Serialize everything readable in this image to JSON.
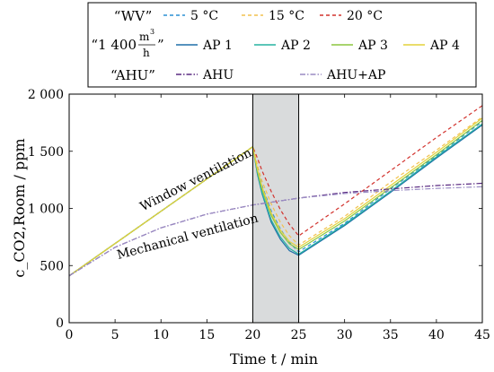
{
  "legend": {
    "row_labels": [
      "“WV”",
      "“1 400",
      "”",
      "“AHU”"
    ],
    "unit": {
      "num": "m",
      "sup": "3",
      "den": "h"
    },
    "items": [
      {
        "label": "5 °C",
        "color": "#2a8fd4",
        "dash": "4,3"
      },
      {
        "label": "15 °C",
        "color": "#f2c14e",
        "dash": "4,3"
      },
      {
        "label": "20 °C",
        "color": "#d2322d",
        "dash": "4,3"
      },
      {
        "label": "AP 1",
        "color": "#1f6fa8",
        "dash": ""
      },
      {
        "label": "AP 2",
        "color": "#26b3a1",
        "dash": ""
      },
      {
        "label": "AP 3",
        "color": "#8cc63f",
        "dash": ""
      },
      {
        "label": "AP 4",
        "color": "#e3d23a",
        "dash": ""
      },
      {
        "label": "AHU",
        "color": "#5a2a82",
        "dash": "6,2,1.5,2"
      },
      {
        "label": "AHU+AP",
        "color": "#9a8cc4",
        "dash": "6,2,1.5,2"
      }
    ]
  },
  "chart_data": {
    "type": "line",
    "xlabel": "Time t / min",
    "ylabel": "c_CO2,Room / ppm",
    "xlim": [
      0,
      45
    ],
    "ylim": [
      0,
      2000
    ],
    "xticks": [
      0,
      5,
      10,
      15,
      20,
      25,
      30,
      35,
      40,
      45
    ],
    "yticks": [
      0,
      500,
      1000,
      1500,
      2000
    ],
    "ytick_labels": [
      "0",
      "500",
      "1 000",
      "1 500",
      "2 000"
    ],
    "shaded_interval": [
      20,
      25
    ],
    "annotations": [
      {
        "text": "Window ventilation",
        "x": 14,
        "y": 1220,
        "angle": -27
      },
      {
        "text": "Mechanical ventilation",
        "x": 13,
        "y": 720,
        "angle": -15
      }
    ],
    "series": [
      {
        "name": "5 °C",
        "x": [
          0,
          20,
          20.5,
          21,
          22,
          23,
          24,
          25,
          30,
          35,
          40,
          45
        ],
        "y": [
          410,
          1540,
          1350,
          1200,
          980,
          820,
          700,
          620,
          870,
          1170,
          1460,
          1760
        ]
      },
      {
        "name": "15 °C",
        "x": [
          0,
          20,
          20.5,
          21,
          22,
          23,
          24,
          25,
          30,
          35,
          40,
          45
        ],
        "y": [
          410,
          1540,
          1380,
          1240,
          1040,
          880,
          760,
          680,
          930,
          1230,
          1510,
          1800
        ]
      },
      {
        "name": "20 °C",
        "x": [
          0,
          20,
          20.5,
          21,
          22,
          23,
          24,
          25,
          30,
          35,
          40,
          45
        ],
        "y": [
          410,
          1540,
          1440,
          1330,
          1150,
          990,
          860,
          760,
          1040,
          1330,
          1620,
          1900
        ]
      },
      {
        "name": "AP 1",
        "x": [
          0,
          20,
          20.5,
          21,
          22,
          23,
          24,
          25,
          30,
          35,
          40,
          45
        ],
        "y": [
          410,
          1540,
          1300,
          1130,
          880,
          730,
          630,
          590,
          850,
          1140,
          1440,
          1730
        ]
      },
      {
        "name": "AP 2",
        "x": [
          0,
          20,
          20.5,
          21,
          22,
          23,
          24,
          25,
          30,
          35,
          40,
          45
        ],
        "y": [
          410,
          1540,
          1310,
          1140,
          900,
          750,
          650,
          600,
          860,
          1150,
          1450,
          1740
        ]
      },
      {
        "name": "AP 3",
        "x": [
          0,
          20,
          20.5,
          21,
          22,
          23,
          24,
          25,
          30,
          35,
          40,
          45
        ],
        "y": [
          410,
          1540,
          1330,
          1170,
          940,
          790,
          690,
          640,
          890,
          1180,
          1470,
          1770
        ]
      },
      {
        "name": "AP 4",
        "x": [
          0,
          20,
          20.5,
          21,
          22,
          23,
          24,
          25,
          30,
          35,
          40,
          45
        ],
        "y": [
          410,
          1540,
          1340,
          1190,
          960,
          810,
          710,
          660,
          910,
          1200,
          1490,
          1790
        ]
      },
      {
        "name": "AHU",
        "x": [
          0,
          5,
          10,
          15,
          20,
          25,
          30,
          35,
          40,
          45
        ],
        "y": [
          410,
          660,
          830,
          950,
          1030,
          1090,
          1140,
          1170,
          1200,
          1220
        ]
      },
      {
        "name": "AHU+AP",
        "x": [
          0,
          5,
          10,
          15,
          20,
          25,
          30,
          35,
          40,
          45
        ],
        "y": [
          410,
          660,
          830,
          950,
          1030,
          1090,
          1130,
          1155,
          1175,
          1190
        ]
      }
    ]
  }
}
